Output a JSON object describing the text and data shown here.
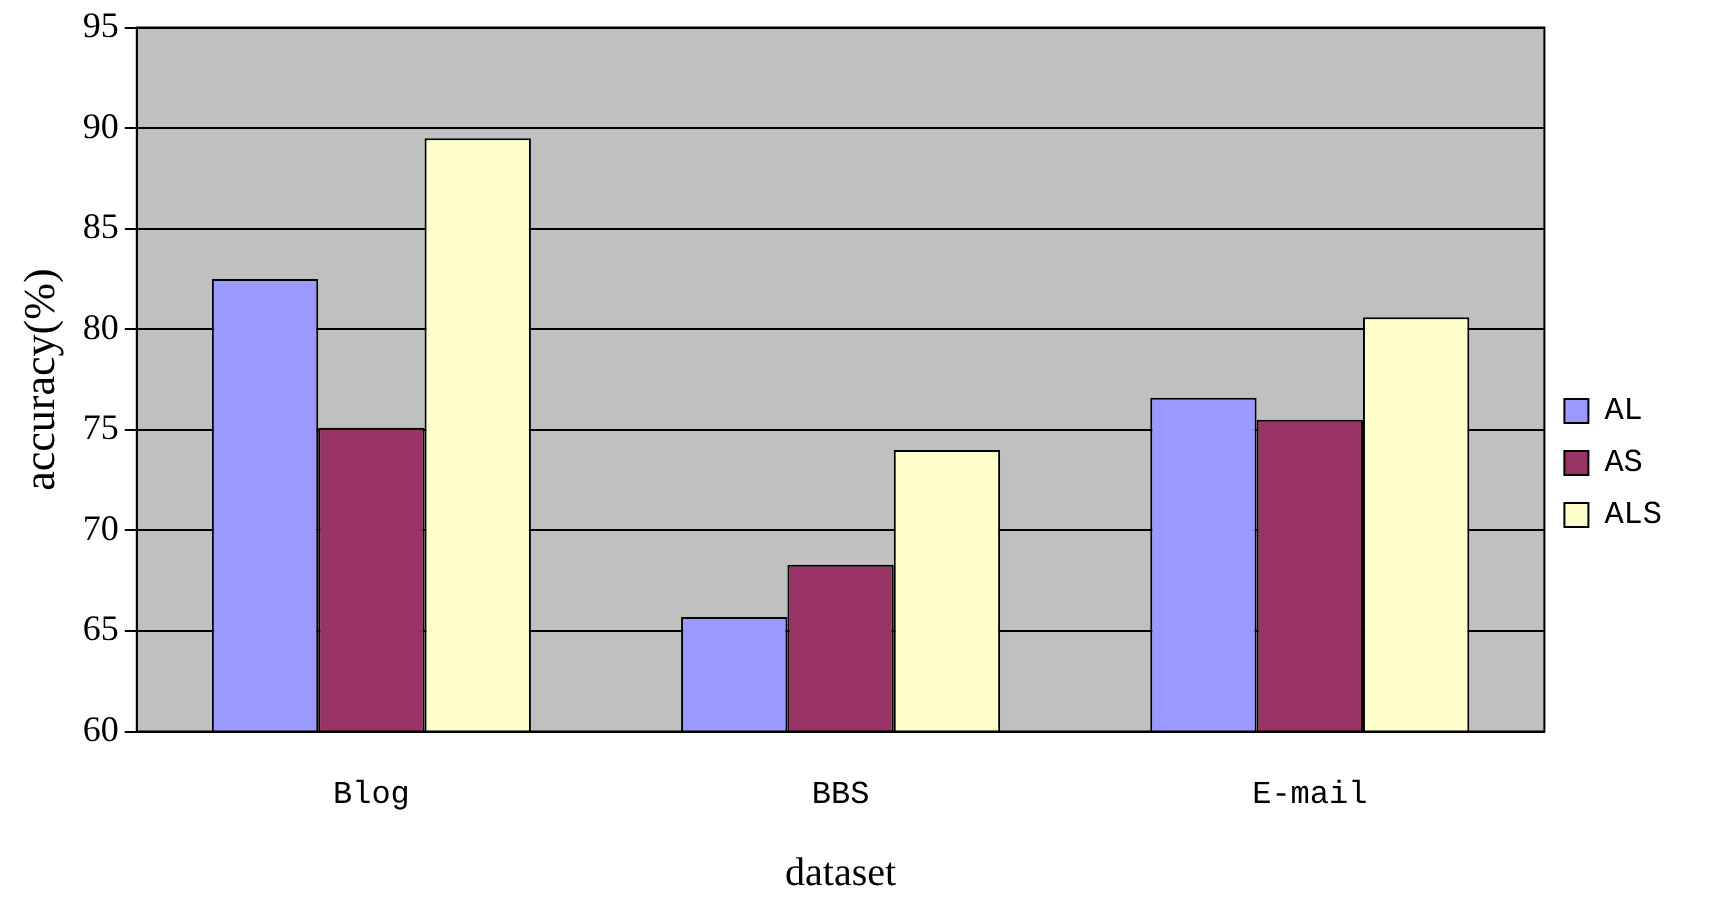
{
  "chart_data": {
    "type": "bar",
    "xlabel": "dataset",
    "ylabel": "accuracy(%)",
    "categories": [
      "Blog",
      "BBS",
      "E-mail"
    ],
    "series": [
      {
        "name": "AL",
        "color": "#9999ff",
        "values": [
          82.5,
          65.7,
          76.6
        ]
      },
      {
        "name": "AS",
        "color": "#993366",
        "values": [
          75.1,
          68.3,
          75.5
        ]
      },
      {
        "name": "ALS",
        "color": "#ffffcc",
        "values": [
          89.5,
          74,
          80.6
        ]
      }
    ],
    "ylim": [
      60,
      95
    ],
    "yticks": [
      60,
      65,
      70,
      75,
      80,
      85,
      90,
      95
    ],
    "grid": "y",
    "legend": "right"
  }
}
